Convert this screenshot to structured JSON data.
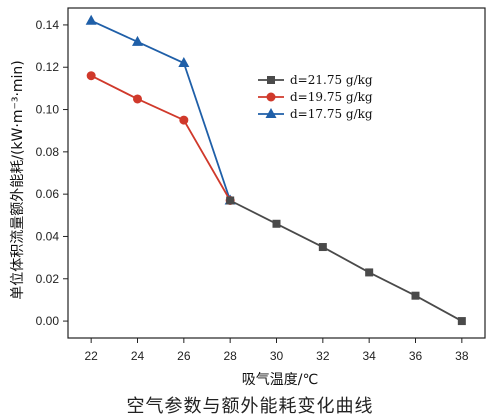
{
  "caption": "空气参数与额外能耗变化曲线",
  "chart_data": {
    "type": "line",
    "xlabel": "吸气温度/℃",
    "ylabel": "单位体积流量额外能耗/(kW·m⁻³·min)",
    "xlim": [
      21,
      39
    ],
    "ylim": [
      -0.008,
      0.148
    ],
    "xticks": [
      22,
      24,
      26,
      28,
      30,
      32,
      34,
      36,
      38
    ],
    "yticks": [
      0.0,
      0.02,
      0.04,
      0.06,
      0.08,
      0.1,
      0.12,
      0.14
    ],
    "legend_position": "top-right",
    "grid": false,
    "series": [
      {
        "name": "d=21.75 g/kg",
        "color": "#4a4a4a",
        "marker": "square",
        "x": [
          28,
          30,
          32,
          34,
          36,
          38
        ],
        "y": [
          0.057,
          0.046,
          0.035,
          0.023,
          0.012,
          0.0
        ]
      },
      {
        "name": "d=19.75 g/kg",
        "color": "#d0392b",
        "marker": "circle",
        "x": [
          22,
          24,
          26,
          28
        ],
        "y": [
          0.116,
          0.105,
          0.095,
          0.057
        ]
      },
      {
        "name": "d=17.75 g/kg",
        "color": "#1f5fa8",
        "marker": "triangle",
        "x": [
          22,
          24,
          26,
          28
        ],
        "y": [
          0.142,
          0.132,
          0.122,
          0.057
        ]
      }
    ]
  }
}
